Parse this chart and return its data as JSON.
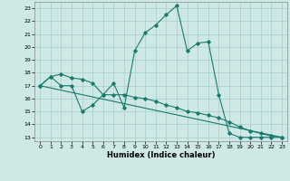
{
  "xlabel": "Humidex (Indice chaleur)",
  "bg_color": "#cde8e5",
  "grid_color": "#a8cece",
  "line_color": "#1a7a6e",
  "xlim": [
    -0.5,
    23.5
  ],
  "ylim": [
    12.7,
    23.5
  ],
  "yticks": [
    13,
    14,
    15,
    16,
    17,
    18,
    19,
    20,
    21,
    22,
    23
  ],
  "xticks": [
    0,
    1,
    2,
    3,
    4,
    5,
    6,
    7,
    8,
    9,
    10,
    11,
    12,
    13,
    14,
    15,
    16,
    17,
    18,
    19,
    20,
    21,
    22,
    23
  ],
  "series1_x": [
    0,
    1,
    2,
    3,
    4,
    5,
    6,
    7,
    8,
    9,
    10,
    11,
    12,
    13,
    14,
    15,
    16,
    17,
    18,
    19,
    20,
    21,
    22,
    23
  ],
  "series1_y": [
    17.0,
    17.7,
    17.0,
    17.0,
    15.0,
    15.5,
    16.3,
    17.2,
    15.3,
    19.7,
    21.1,
    21.7,
    22.5,
    23.2,
    19.7,
    20.3,
    20.4,
    16.3,
    13.3,
    13.0,
    13.0,
    13.0,
    13.0,
    13.0
  ],
  "series2_x": [
    0,
    1,
    2,
    3,
    4,
    5,
    6,
    7,
    8,
    9,
    10,
    11,
    12,
    13,
    14,
    15,
    16,
    17,
    18,
    19,
    20,
    21,
    22,
    23
  ],
  "series2_y": [
    17.0,
    17.7,
    17.9,
    17.6,
    17.5,
    17.2,
    16.3,
    16.3,
    16.3,
    16.1,
    16.0,
    15.8,
    15.5,
    15.3,
    15.0,
    14.9,
    14.7,
    14.5,
    14.2,
    13.8,
    13.5,
    13.3,
    13.1,
    13.0
  ],
  "series3_x": [
    0,
    23
  ],
  "series3_y": [
    17.0,
    13.0
  ]
}
